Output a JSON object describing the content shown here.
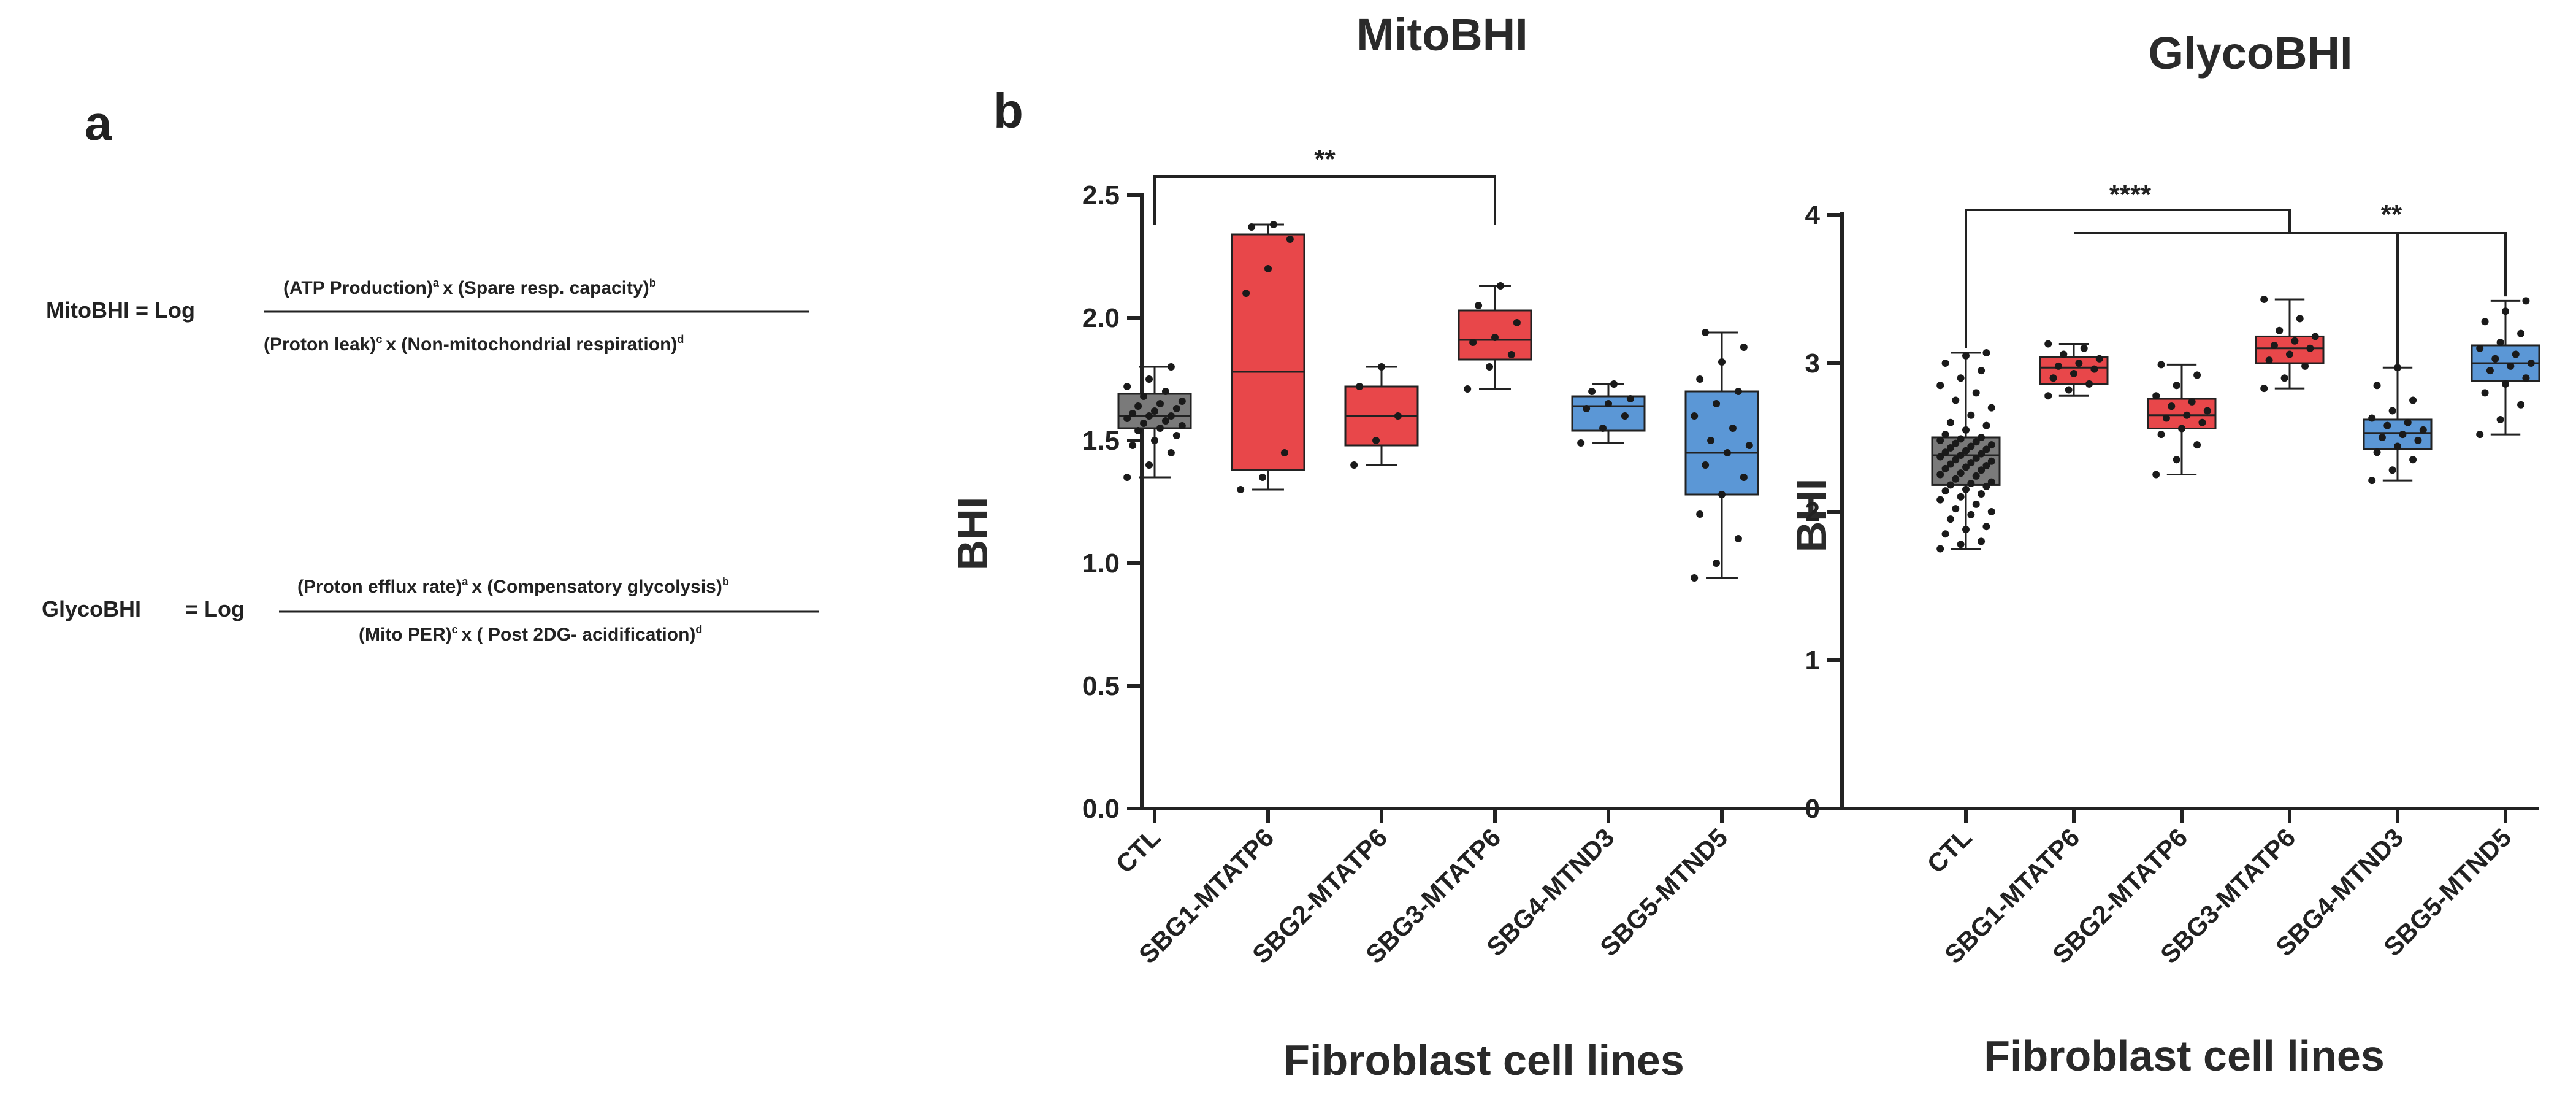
{
  "panel_a": {
    "label": "a",
    "mito_formula": {
      "name": "MitoBHI = Log",
      "num_1": "(ATP Production)",
      "num_1_sup": "a",
      "num_2": "x (Spare resp. capacity)",
      "num_2_sup": "b",
      "den_1": "(Proton leak)",
      "den_1_sup": "c",
      "den_2": "x (Non-mitochondrial respiration)",
      "den_2_sup": "d"
    },
    "glyco_formula": {
      "name": "GlycoBHI",
      "log": "= Log",
      "num_1": "(Proton efflux rate)",
      "num_1_sup": "a",
      "num_2": "x (Compensatory glycolysis)",
      "num_2_sup": "b",
      "den_1": "(Mito PER)",
      "den_1_sup": "c",
      "den_2": "x ( Post 2DG- acidification)",
      "den_2_sup": "d"
    }
  },
  "panel_b": {
    "label": "b"
  },
  "colors": {
    "ctl": "#7a7a7a",
    "mtatp6": "#e8474a",
    "mtnd": "#5b97d6",
    "axis": "#222222",
    "point": "#1a1a1a"
  },
  "chart_data": [
    {
      "type": "box",
      "title": "MitoBHI",
      "ylabel": "BHI",
      "xlabel": "Fibroblast cell lines",
      "ylim": [
        0,
        2.5
      ],
      "yticks": [
        "0.0",
        "0.5",
        "1.0",
        "1.5",
        "2.0",
        "2.5"
      ],
      "categories": [
        "CTL",
        "SBG1-MTATP6",
        "SBG2-MTATP6",
        "SBG3-MTATP6",
        "SBG4-MTND3",
        "SBG5-MTND5"
      ],
      "boxes": [
        {
          "group": "ctl",
          "min": 1.35,
          "q1": 1.55,
          "median": 1.6,
          "q3": 1.69,
          "max": 1.8
        },
        {
          "group": "mtatp6",
          "min": 1.3,
          "q1": 1.38,
          "median": 1.78,
          "q3": 2.34,
          "max": 2.38
        },
        {
          "group": "mtatp6",
          "min": 1.4,
          "q1": 1.48,
          "median": 1.6,
          "q3": 1.72,
          "max": 1.8
        },
        {
          "group": "mtatp6",
          "min": 1.71,
          "q1": 1.83,
          "median": 1.91,
          "q3": 2.03,
          "max": 2.13
        },
        {
          "group": "mtnd",
          "min": 1.49,
          "q1": 1.54,
          "median": 1.64,
          "q3": 1.68,
          "max": 1.73
        },
        {
          "group": "mtnd",
          "min": 0.94,
          "q1": 1.28,
          "median": 1.45,
          "q3": 1.7,
          "max": 1.94
        }
      ],
      "points": [
        [
          1.35,
          1.4,
          1.45,
          1.48,
          1.5,
          1.52,
          1.54,
          1.55,
          1.56,
          1.57,
          1.58,
          1.59,
          1.6,
          1.6,
          1.61,
          1.62,
          1.63,
          1.64,
          1.65,
          1.66,
          1.68,
          1.7,
          1.72,
          1.75,
          1.8
        ],
        [
          1.3,
          1.35,
          1.45,
          2.1,
          2.2,
          2.32,
          2.37,
          2.38
        ],
        [
          1.4,
          1.5,
          1.6,
          1.72,
          1.8
        ],
        [
          1.71,
          1.8,
          1.85,
          1.9,
          1.92,
          1.98,
          2.05,
          2.13
        ],
        [
          1.49,
          1.55,
          1.6,
          1.63,
          1.65,
          1.67,
          1.7,
          1.73
        ],
        [
          0.94,
          1.0,
          1.1,
          1.2,
          1.28,
          1.35,
          1.4,
          1.45,
          1.48,
          1.5,
          1.55,
          1.6,
          1.65,
          1.7,
          1.75,
          1.82,
          1.88,
          1.94
        ]
      ],
      "significance": [
        {
          "from": 0,
          "to": 3,
          "label": "**"
        }
      ]
    },
    {
      "type": "box",
      "title": "GlycoBHI",
      "ylabel": "BHI",
      "xlabel": "Fibroblast cell lines",
      "ylim": [
        0,
        4
      ],
      "yticks": [
        "0",
        "1",
        "2",
        "3",
        "4"
      ],
      "categories": [
        "CTL",
        "SBG1-MTATP6",
        "SBG2-MTATP6",
        "SBG3-MTATP6",
        "SBG4-MTND3",
        "SBG5-MTND5"
      ],
      "boxes": [
        {
          "group": "ctl",
          "min": 1.75,
          "q1": 2.18,
          "median": 2.38,
          "q3": 2.5,
          "max": 3.07
        },
        {
          "group": "mtatp6",
          "min": 2.78,
          "q1": 2.86,
          "median": 2.97,
          "q3": 3.04,
          "max": 3.13
        },
        {
          "group": "mtatp6",
          "min": 2.25,
          "q1": 2.56,
          "median": 2.65,
          "q3": 2.76,
          "max": 2.99
        },
        {
          "group": "mtatp6",
          "min": 2.83,
          "q1": 3.0,
          "median": 3.1,
          "q3": 3.18,
          "max": 3.43
        },
        {
          "group": "mtnd",
          "min": 2.21,
          "q1": 2.42,
          "median": 2.53,
          "q3": 2.62,
          "max": 2.97
        },
        {
          "group": "mtnd",
          "min": 2.52,
          "q1": 2.88,
          "median": 3.0,
          "q3": 3.12,
          "max": 3.42
        }
      ],
      "points": [
        [
          1.75,
          1.78,
          1.8,
          1.85,
          1.88,
          1.9,
          1.95,
          1.98,
          2.0,
          2.02,
          2.05,
          2.08,
          2.1,
          2.12,
          2.14,
          2.15,
          2.17,
          2.18,
          2.19,
          2.2,
          2.22,
          2.24,
          2.25,
          2.26,
          2.28,
          2.29,
          2.3,
          2.31,
          2.32,
          2.33,
          2.34,
          2.35,
          2.36,
          2.37,
          2.38,
          2.39,
          2.4,
          2.41,
          2.42,
          2.43,
          2.44,
          2.45,
          2.46,
          2.47,
          2.48,
          2.49,
          2.5,
          2.52,
          2.55,
          2.58,
          2.6,
          2.65,
          2.7,
          2.75,
          2.8,
          2.85,
          2.9,
          2.95,
          3.0,
          3.05,
          3.07
        ],
        [
          2.78,
          2.82,
          2.86,
          2.9,
          2.93,
          2.96,
          2.98,
          3.0,
          3.03,
          3.06,
          3.1,
          3.13
        ],
        [
          2.25,
          2.35,
          2.45,
          2.52,
          2.56,
          2.6,
          2.63,
          2.65,
          2.68,
          2.71,
          2.74,
          2.78,
          2.85,
          2.92,
          2.99
        ],
        [
          2.83,
          2.9,
          2.98,
          3.02,
          3.06,
          3.1,
          3.12,
          3.15,
          3.18,
          3.22,
          3.3,
          3.43
        ],
        [
          2.21,
          2.28,
          2.35,
          2.4,
          2.44,
          2.48,
          2.5,
          2.52,
          2.55,
          2.58,
          2.6,
          2.63,
          2.68,
          2.75,
          2.85,
          2.97
        ],
        [
          2.52,
          2.62,
          2.72,
          2.8,
          2.86,
          2.9,
          2.95,
          2.98,
          3.0,
          3.03,
          3.06,
          3.1,
          3.14,
          3.2,
          3.28,
          3.35,
          3.42
        ]
      ],
      "significance": [
        {
          "from": 0,
          "to": 3,
          "label": "****",
          "type": "group"
        },
        {
          "from": 1,
          "to": 5,
          "label": "**",
          "type": "group"
        },
        {
          "from": 3,
          "to": 4,
          "label": "",
          "type": "connector"
        }
      ]
    }
  ]
}
